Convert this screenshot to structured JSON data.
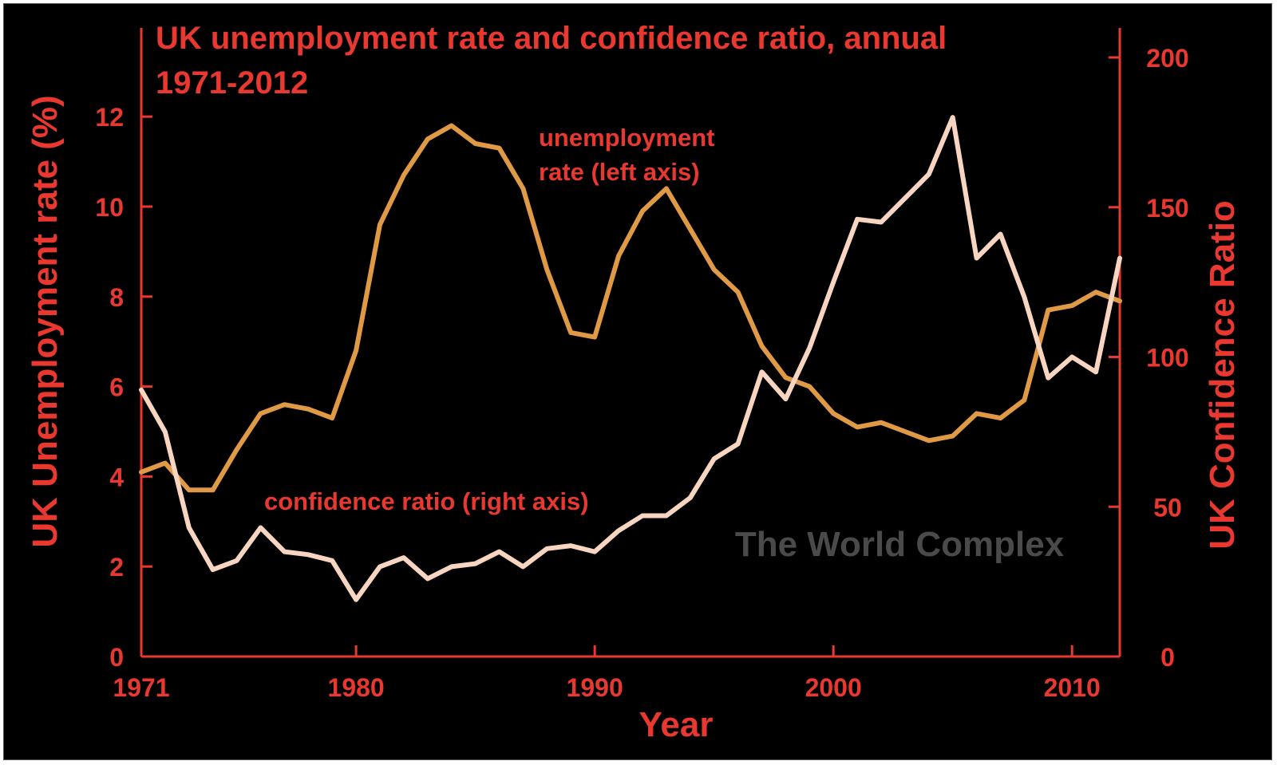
{
  "colors": {
    "background": "#000000",
    "axis": "#e8382f",
    "unemployment_line": "#e09a45",
    "confidence_line": "#f8d5c0",
    "watermark": "#4a4a4a"
  },
  "watermark": "The World Complex",
  "chart_data": {
    "type": "line",
    "title": "UK unemployment rate and confidence ratio, annual",
    "subtitle": "1971-2012",
    "xlabel": "Year",
    "ylabel_left": "UK Unemployment rate (%)",
    "ylabel_right": "UK Confidence Ratio",
    "xlim": [
      1971,
      2012
    ],
    "ylim_left": [
      0,
      14
    ],
    "ylim_right": [
      0,
      200
    ],
    "xticks": [
      1971,
      1980,
      1990,
      2000,
      2010
    ],
    "yticks_left": [
      0,
      2,
      4,
      6,
      8,
      10,
      12
    ],
    "yticks_right": [
      0,
      50,
      100,
      150,
      200
    ],
    "grid": false,
    "series": [
      {
        "axis": "left",
        "label": "unemployment rate (left axis)",
        "label_lines": [
          "unemployment",
          "rate (left axis)"
        ],
        "x": [
          1971,
          1972,
          1973,
          1974,
          1975,
          1976,
          1977,
          1978,
          1979,
          1980,
          1981,
          1982,
          1983,
          1984,
          1985,
          1986,
          1987,
          1988,
          1989,
          1990,
          1991,
          1992,
          1993,
          1994,
          1995,
          1996,
          1997,
          1998,
          1999,
          2000,
          2001,
          2002,
          2003,
          2004,
          2005,
          2006,
          2007,
          2008,
          2009,
          2010,
          2011,
          2012
        ],
        "values": [
          4.1,
          4.3,
          3.7,
          3.7,
          4.6,
          5.4,
          5.6,
          5.5,
          5.3,
          6.8,
          9.6,
          10.7,
          11.5,
          11.8,
          11.4,
          11.3,
          10.4,
          8.6,
          7.2,
          7.1,
          8.9,
          9.9,
          10.4,
          9.5,
          8.6,
          8.1,
          6.9,
          6.2,
          6.0,
          5.4,
          5.1,
          5.2,
          5.0,
          4.8,
          4.9,
          5.4,
          5.3,
          5.7,
          7.7,
          7.8,
          8.1,
          7.9
        ]
      },
      {
        "axis": "right",
        "label": "confidence ratio (right axis)",
        "label_lines": [
          "confidence ratio (right axis)"
        ],
        "x": [
          1971,
          1972,
          1973,
          1974,
          1975,
          1976,
          1977,
          1978,
          1979,
          1980,
          1981,
          1982,
          1983,
          1984,
          1985,
          1986,
          1987,
          1988,
          1989,
          1990,
          1991,
          1992,
          1993,
          1994,
          1995,
          1996,
          1997,
          1998,
          1999,
          2000,
          2001,
          2002,
          2003,
          2004,
          2005,
          2006,
          2007,
          2008,
          2009,
          2010,
          2011,
          2012
        ],
        "values": [
          89,
          75,
          43,
          29,
          32,
          43,
          35,
          34,
          32,
          19,
          30,
          33,
          26,
          30,
          31,
          35,
          30,
          36,
          37,
          35,
          42,
          47,
          47,
          53,
          66,
          71,
          95,
          86,
          103,
          125,
          146,
          145,
          153,
          161,
          180,
          133,
          141,
          120,
          93,
          100,
          95,
          133
        ]
      }
    ]
  }
}
